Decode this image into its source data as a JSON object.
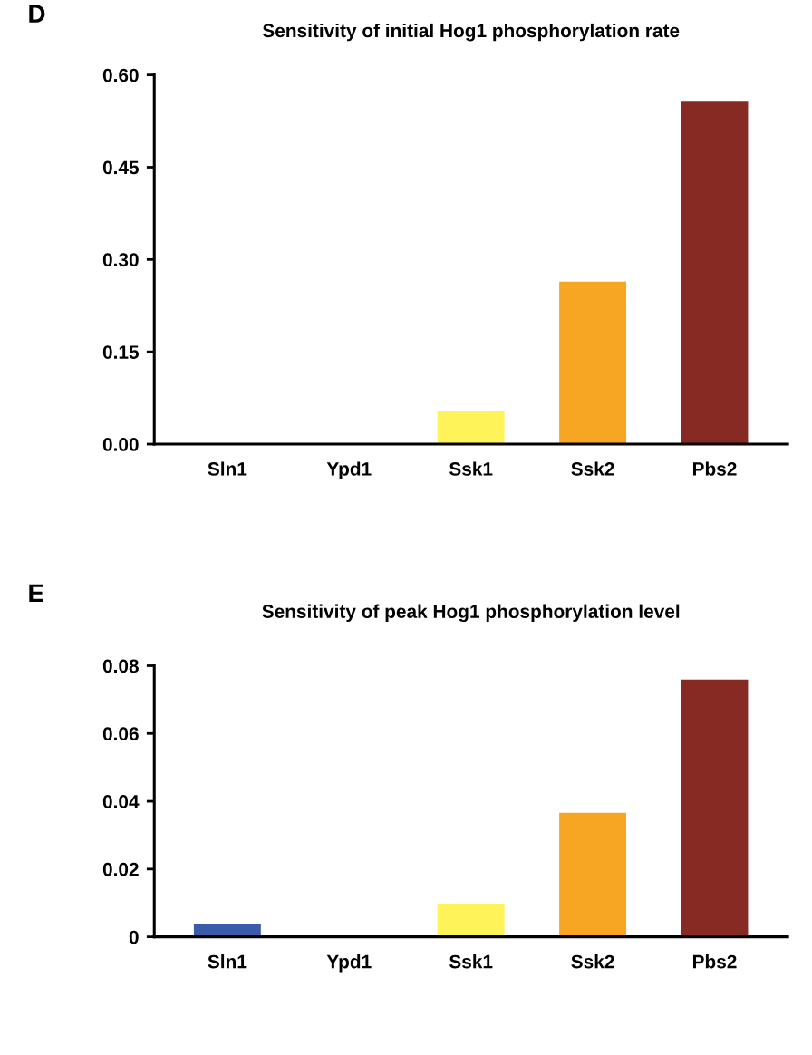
{
  "chart_data": [
    {
      "type": "bar",
      "title": "Sensitivity of initial Hog1 phosphorylation rate",
      "annotations": [
        "D"
      ],
      "categories": [
        "Sln1",
        "Ypd1",
        "Ssk1",
        "Ssk2",
        "Pbs2"
      ],
      "values": [
        0,
        0,
        0.053,
        0.264,
        0.558
      ],
      "colors": [
        "#3a5ca8",
        "#3a3a8a",
        "#fff35a",
        "#f7a623",
        "#882a24"
      ],
      "ylim": [
        0,
        0.6
      ],
      "yticks": [
        {
          "value": 0,
          "label": "0.00"
        },
        0.15,
        {
          "value": 0.3,
          "label": "0.30"
        },
        0.45,
        {
          "value": 0.6,
          "label": "0.60"
        }
      ],
      "grid": false,
      "legend": false
    },
    {
      "type": "bar",
      "title": "Sensitivity of peak Hog1 phosphorylation level",
      "annotations": [
        "E"
      ],
      "categories": [
        "Sln1",
        "Ypd1",
        "Ssk1",
        "Ssk2",
        "Pbs2"
      ],
      "values": [
        0.0037,
        0,
        0.0098,
        0.0366,
        0.0759
      ],
      "colors": [
        "#3a5ca8",
        "#3a3a8a",
        "#fff35a",
        "#f7a623",
        "#882a24"
      ],
      "ylim": [
        0,
        0.08
      ],
      "yticks": [
        0,
        0.02,
        0.04,
        0.06,
        0.08
      ],
      "grid": false,
      "legend": false
    }
  ]
}
